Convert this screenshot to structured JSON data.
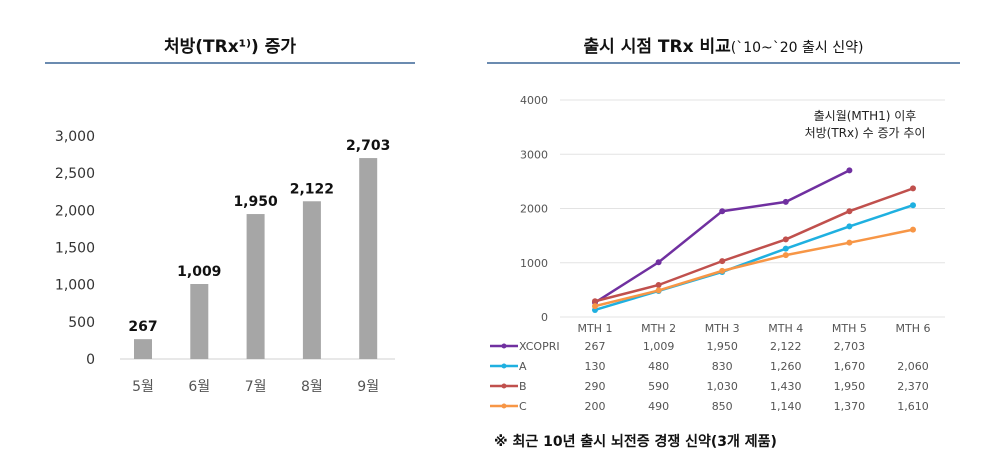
{
  "chart_data": [
    {
      "type": "bar",
      "title": "처방(TRx¹⁾) 증가",
      "categories": [
        "5월",
        "6월",
        "7월",
        "8월",
        "9월"
      ],
      "values": [
        267,
        1009,
        1950,
        2122,
        2703
      ],
      "data_labels": [
        "267",
        "1,009",
        "1,950",
        "2,122",
        "2,703"
      ],
      "ylim": [
        0,
        3000
      ],
      "yticks": [
        "0",
        "500",
        "1,000",
        "1,500",
        "2,000",
        "2,500",
        "3,000"
      ],
      "bar_color": "#A6A6A6",
      "grid": false
    },
    {
      "type": "line",
      "title": "출시 시점 TRx 비교",
      "subtitle": "(`10~`20 출시 신약)",
      "annotation": [
        "출시월(MTH1) 이후",
        "처방(TRx) 수 증가 추이"
      ],
      "categories": [
        "MTH 1",
        "MTH 2",
        "MTH 3",
        "MTH 4",
        "MTH 5",
        "MTH 6"
      ],
      "ylim": [
        0,
        4000
      ],
      "yticks": [
        "0",
        "1000",
        "2000",
        "3000",
        "4000"
      ],
      "grid": true,
      "legend": "data-table",
      "series": [
        {
          "name": "XCOPRI",
          "color": "#7030A0",
          "values": [
            267,
            1009,
            1950,
            2122,
            2703,
            null
          ],
          "labels": [
            "267",
            "1,009",
            "1,950",
            "2,122",
            "2,703",
            ""
          ]
        },
        {
          "name": "A",
          "color": "#1FB0E0",
          "values": [
            130,
            480,
            830,
            1260,
            1670,
            2060
          ],
          "labels": [
            "130",
            "480",
            "830",
            "1,260",
            "1,670",
            "2,060"
          ]
        },
        {
          "name": "B",
          "color": "#C0504D",
          "values": [
            290,
            590,
            1030,
            1430,
            1950,
            2370
          ],
          "labels": [
            "290",
            "590",
            "1,030",
            "1,430",
            "1,950",
            "2,370"
          ]
        },
        {
          "name": "C",
          "color": "#F79646",
          "values": [
            200,
            490,
            850,
            1140,
            1370,
            1610
          ],
          "labels": [
            "200",
            "490",
            "850",
            "1,140",
            "1,370",
            "1,610"
          ]
        }
      ]
    }
  ],
  "footnote": "※ 최근 10년 출시 뇌전증 경쟁 신약(3개 제품)"
}
